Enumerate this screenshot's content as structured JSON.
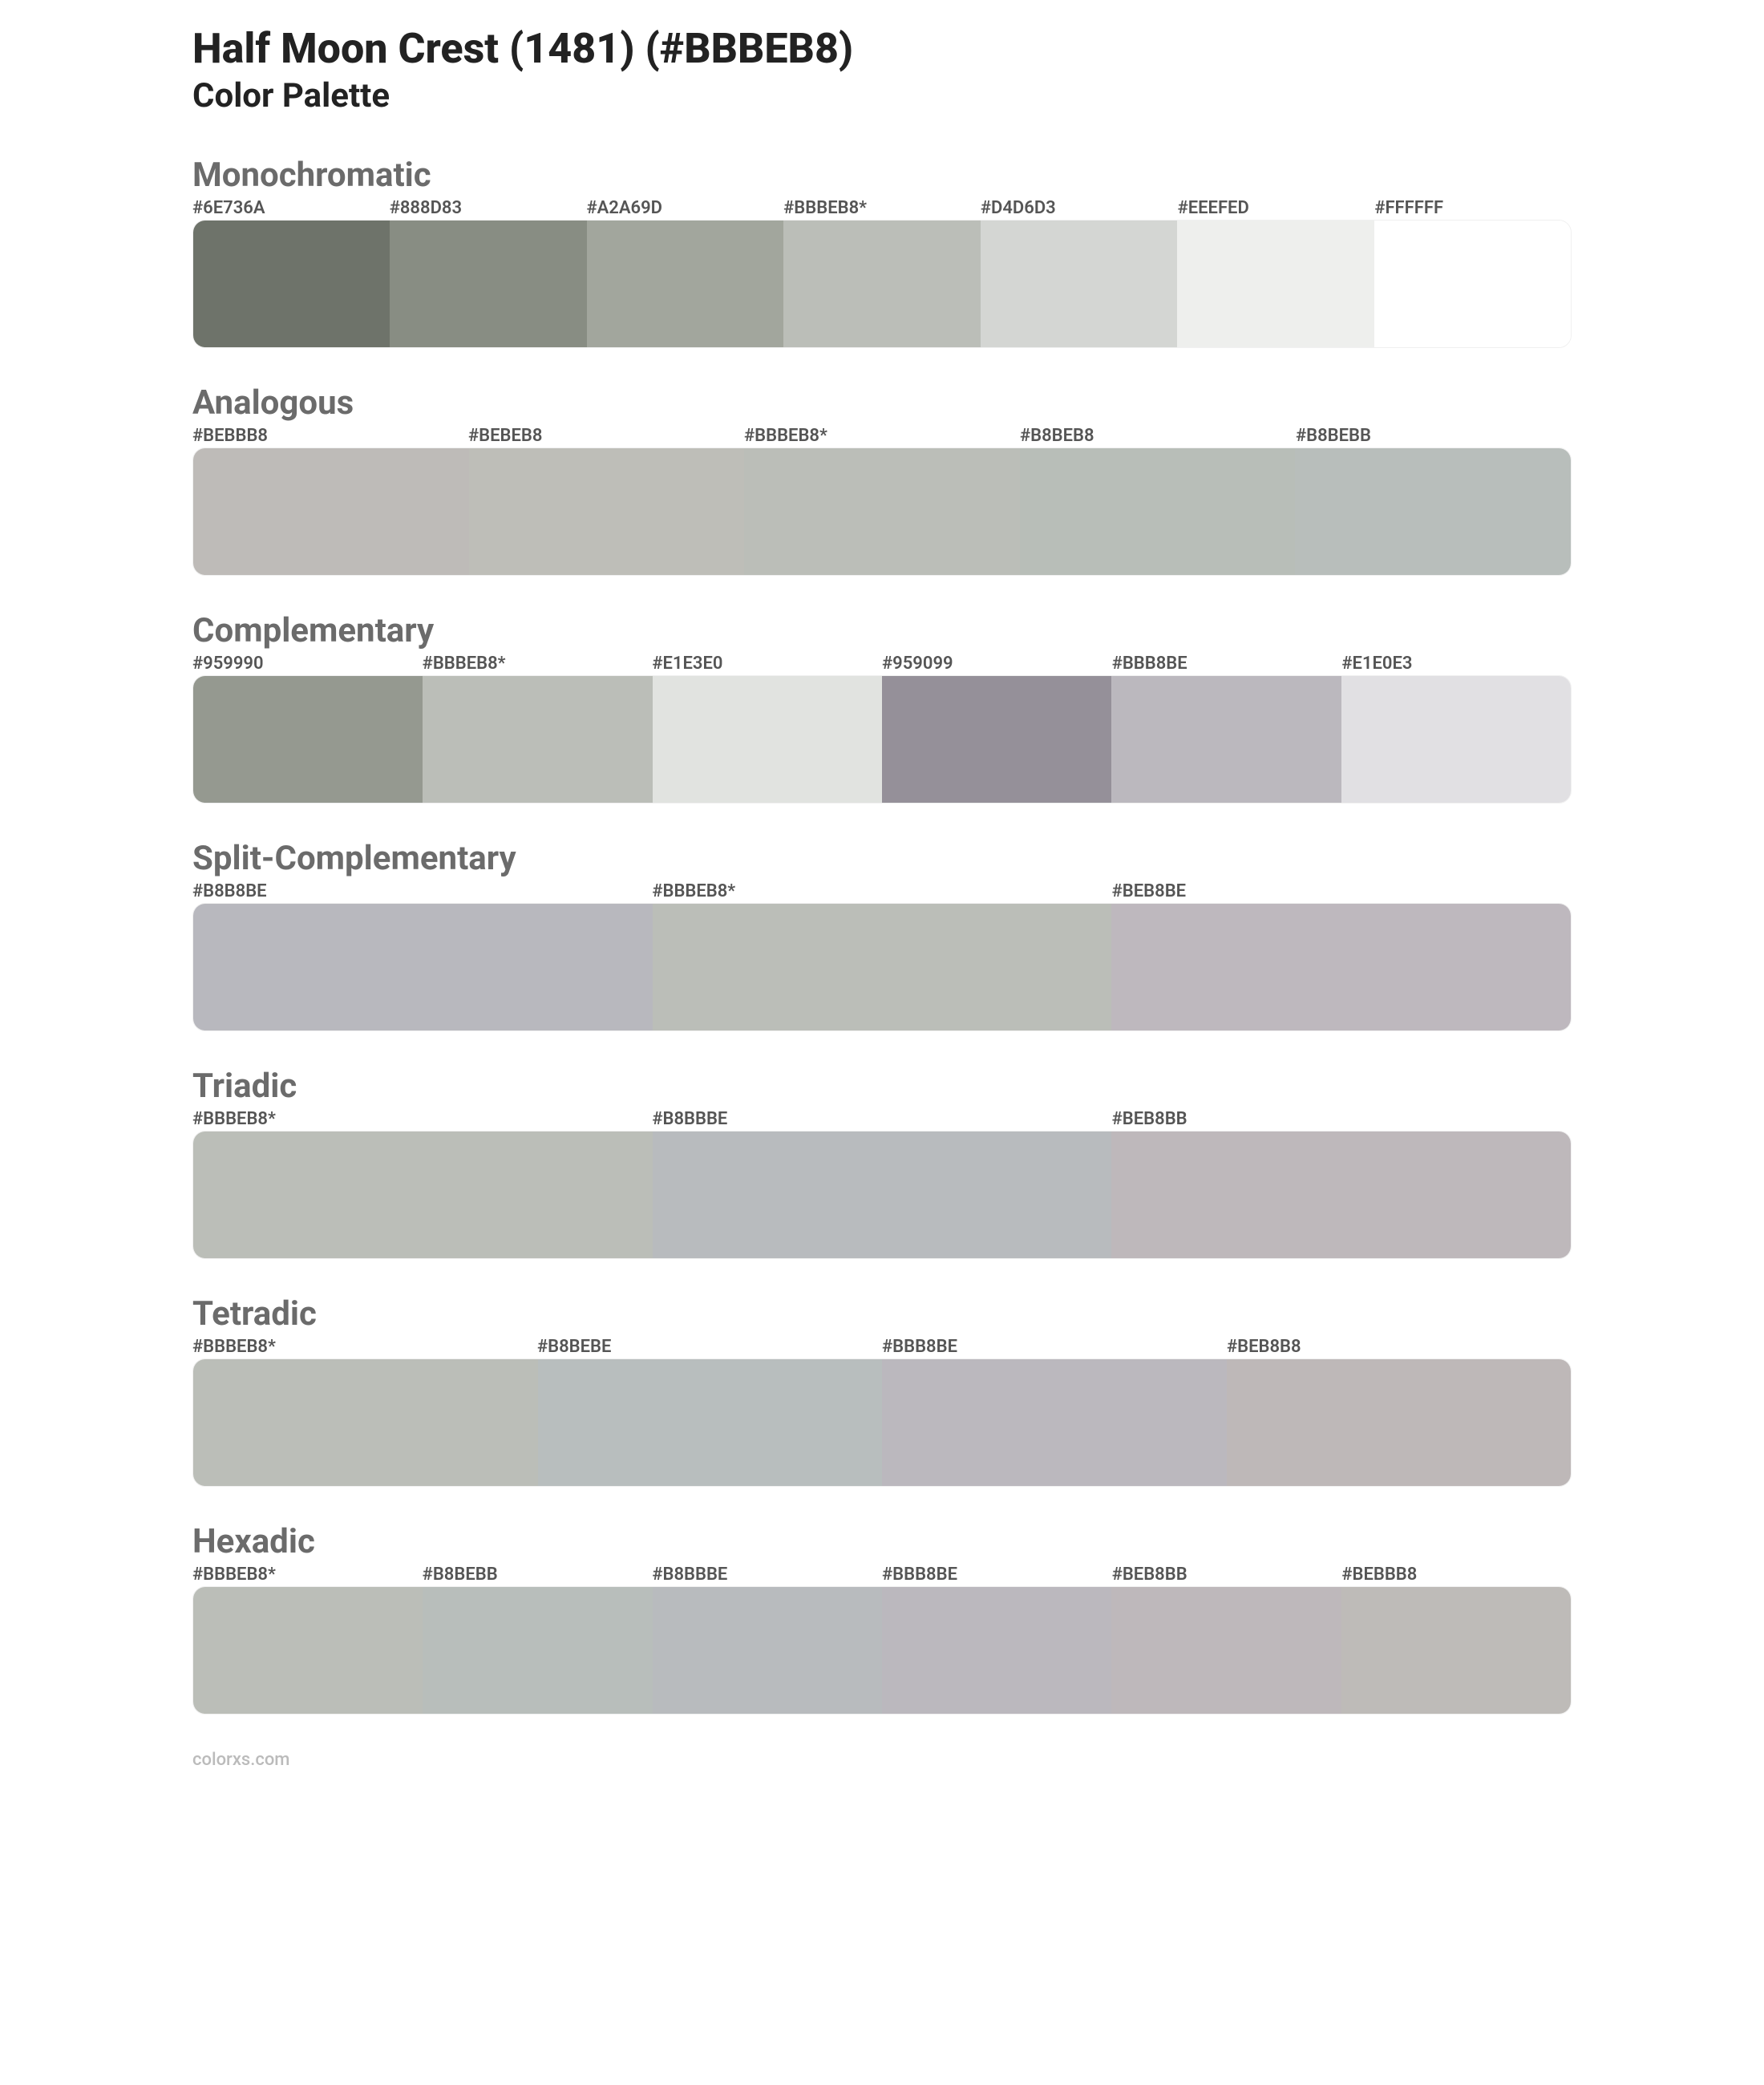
{
  "header": {
    "title": "Half Moon Crest (1481) (#BBBEB8)",
    "subtitle": "Color Palette"
  },
  "sections": [
    {
      "name": "Monochromatic",
      "swatches": [
        {
          "label": "#6E736A",
          "color": "#6E736A"
        },
        {
          "label": "#888D83",
          "color": "#888D83"
        },
        {
          "label": "#A2A69D",
          "color": "#A2A69D"
        },
        {
          "label": "#BBBEB8*",
          "color": "#BBBEB8"
        },
        {
          "label": "#D4D6D3",
          "color": "#D4D6D3"
        },
        {
          "label": "#EEEFED",
          "color": "#EEEFED"
        },
        {
          "label": "#FFFFFF",
          "color": "#FFFFFF"
        }
      ]
    },
    {
      "name": "Analogous",
      "swatches": [
        {
          "label": "#BEBBB8",
          "color": "#BEBBB8"
        },
        {
          "label": "#BEBEB8",
          "color": "#BEBEB8"
        },
        {
          "label": "#BBBEB8*",
          "color": "#BBBEB8"
        },
        {
          "label": "#B8BEB8",
          "color": "#B8BEB8"
        },
        {
          "label": "#B8BEBB",
          "color": "#B8BEBB"
        }
      ]
    },
    {
      "name": "Complementary",
      "swatches": [
        {
          "label": "#959990",
          "color": "#959990"
        },
        {
          "label": "#BBBEB8*",
          "color": "#BBBEB8"
        },
        {
          "label": "#E1E3E0",
          "color": "#E1E3E0"
        },
        {
          "label": "#959099",
          "color": "#959099"
        },
        {
          "label": "#BBB8BE",
          "color": "#BBB8BE"
        },
        {
          "label": "#E1E0E3",
          "color": "#E1E0E3"
        }
      ]
    },
    {
      "name": "Split-Complementary",
      "swatches": [
        {
          "label": "#B8B8BE",
          "color": "#B8B8BE"
        },
        {
          "label": "#BBBEB8*",
          "color": "#BBBEB8"
        },
        {
          "label": "#BEB8BE",
          "color": "#BEB8BE"
        }
      ]
    },
    {
      "name": "Triadic",
      "swatches": [
        {
          "label": "#BBBEB8*",
          "color": "#BBBEB8"
        },
        {
          "label": "#B8BBBE",
          "color": "#B8BBBE"
        },
        {
          "label": "#BEB8BB",
          "color": "#BEB8BB"
        }
      ]
    },
    {
      "name": "Tetradic",
      "swatches": [
        {
          "label": "#BBBEB8*",
          "color": "#BBBEB8"
        },
        {
          "label": "#B8BEBE",
          "color": "#B8BEBE"
        },
        {
          "label": "#BBB8BE",
          "color": "#BBB8BE"
        },
        {
          "label": "#BEB8B8",
          "color": "#BEB8B8"
        }
      ]
    },
    {
      "name": "Hexadic",
      "swatches": [
        {
          "label": "#BBBEB8*",
          "color": "#BBBEB8"
        },
        {
          "label": "#B8BEBB",
          "color": "#B8BEBB"
        },
        {
          "label": "#B8BBBE",
          "color": "#B8BBBE"
        },
        {
          "label": "#BBB8BE",
          "color": "#BBB8BE"
        },
        {
          "label": "#BEB8BB",
          "color": "#BEB8BB"
        },
        {
          "label": "#BEBBB8",
          "color": "#BEBBB8"
        }
      ]
    }
  ],
  "footer": "colorxs.com",
  "style": {
    "background_color": "#ffffff",
    "title_color": "#222222",
    "title_fontsize": 52,
    "subtitle_fontsize": 42,
    "section_title_color": "#6b6b6b",
    "section_title_fontsize": 42,
    "label_color": "#555555",
    "label_fontsize": 22,
    "swatch_row_height": 160,
    "swatch_row_radius": 16,
    "footer_color": "#bbbbbb",
    "footer_fontsize": 22
  }
}
